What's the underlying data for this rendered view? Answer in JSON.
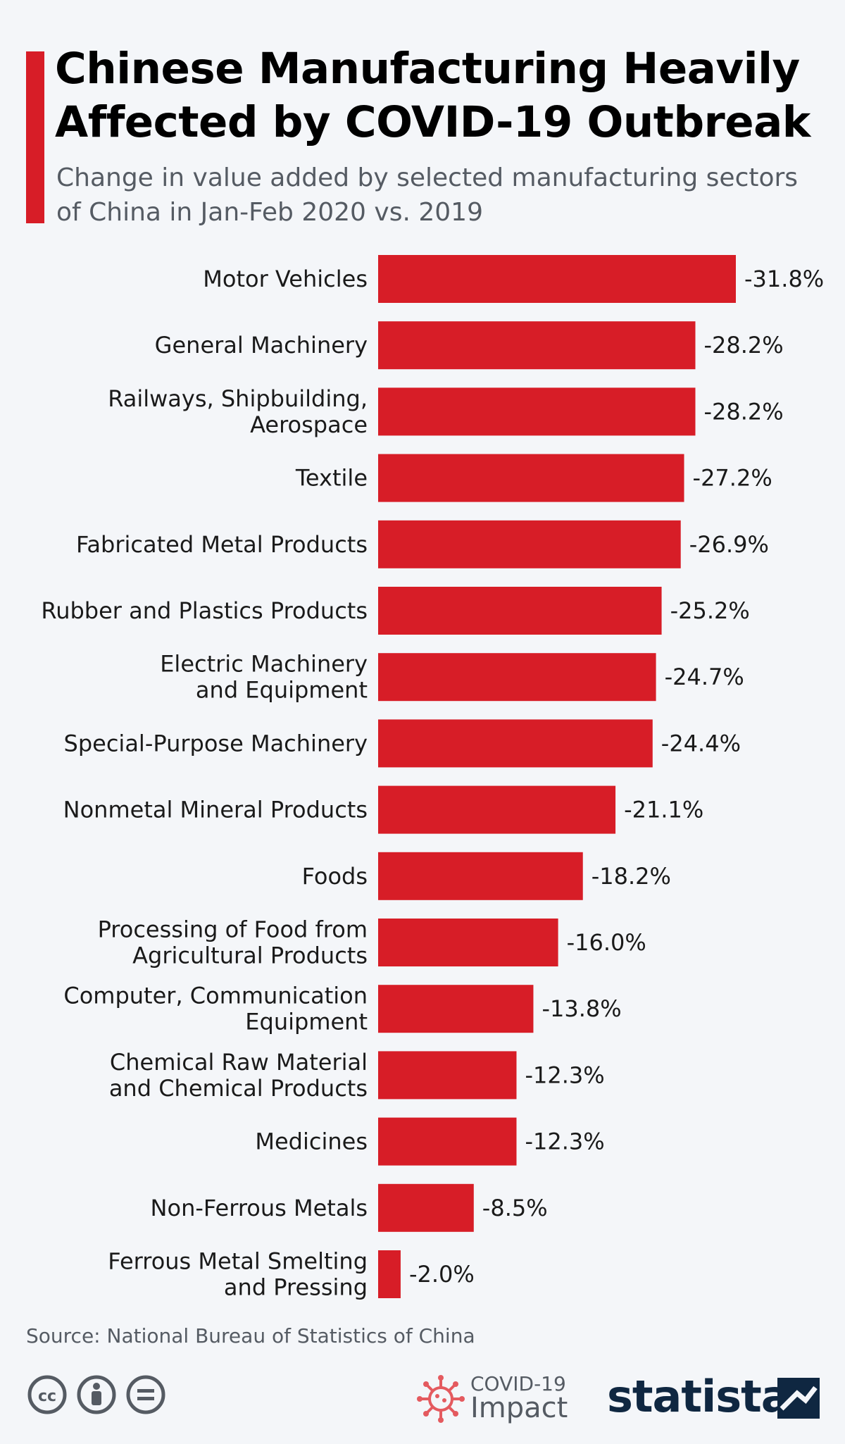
{
  "header": {
    "title": "Chinese Manufacturing Heavily Affected by COVID-19 Outbreak",
    "subtitle": "Change in value added by selected manufacturing sectors of China in Jan-Feb 2020 vs. 2019"
  },
  "colors": {
    "bar": "#d71d27",
    "accent": "#d71d27",
    "background": "#f4f6f9",
    "brand": "#0f2741"
  },
  "chart_data": {
    "type": "bar",
    "orientation": "horizontal",
    "title": "Chinese Manufacturing Heavily Affected by COVID-19 Outbreak",
    "subtitle": "Change in value added by selected manufacturing sectors of China in Jan-Feb 2020 vs. 2019",
    "categories": [
      [
        "Motor Vehicles"
      ],
      [
        "General Machinery"
      ],
      [
        "Railways, Shipbuilding,",
        "Aerospace"
      ],
      [
        "Textile"
      ],
      [
        "Fabricated Metal Products"
      ],
      [
        "Rubber and Plastics Products"
      ],
      [
        "Electric Machinery",
        "and Equipment"
      ],
      [
        "Special-Purpose Machinery"
      ],
      [
        "Nonmetal Mineral Products"
      ],
      [
        "Foods"
      ],
      [
        "Processing of Food from",
        "Agricultural Products"
      ],
      [
        "Computer, Communication",
        "Equipment"
      ],
      [
        "Chemical Raw Material",
        "and Chemical Products"
      ],
      [
        "Medicines"
      ],
      [
        "Non-Ferrous Metals"
      ],
      [
        "Ferrous Metal Smelting",
        "and Pressing"
      ]
    ],
    "values": [
      -31.8,
      -28.2,
      -28.2,
      -27.2,
      -26.9,
      -25.2,
      -24.7,
      -24.4,
      -21.1,
      -18.2,
      -16.0,
      -13.8,
      -12.3,
      -12.3,
      -8.5,
      -2.0
    ],
    "value_labels": [
      "-31.8%",
      "-28.2%",
      "-28.2%",
      "-27.2%",
      "-26.9%",
      "-25.2%",
      "-24.7%",
      "-24.4%",
      "-21.1%",
      "-18.2%",
      "-16.0%",
      "-13.8%",
      "-12.3%",
      "-12.3%",
      "-8.5%",
      "-2.0%"
    ],
    "unit": "%",
    "grid": false,
    "legend": "none"
  },
  "footer": {
    "source": "Source: National Bureau of Statistics of China",
    "badge_line1": "COVID-19",
    "badge_line2": "Impact",
    "brand": "statista"
  }
}
